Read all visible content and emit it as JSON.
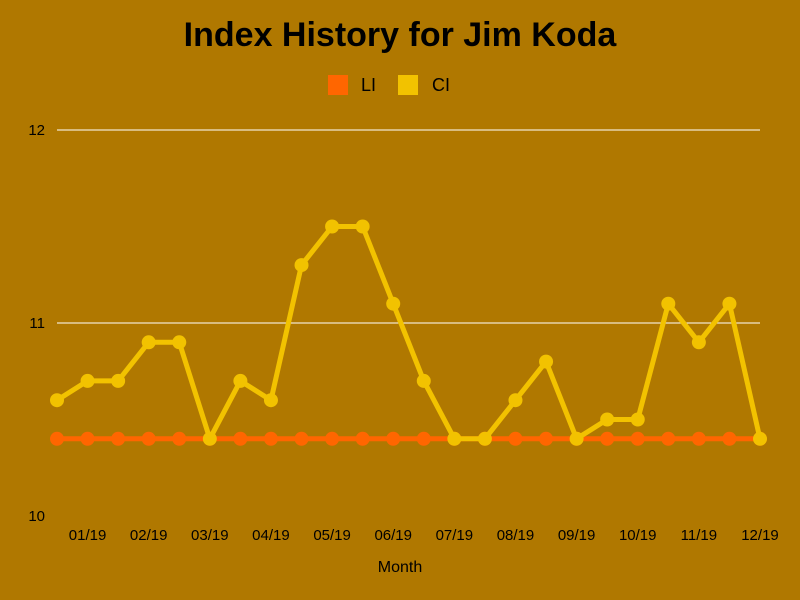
{
  "chart_data": {
    "type": "line",
    "title": "Index History for Jim Koda",
    "xlabel": "Month",
    "ylabel": "",
    "ylim": [
      10,
      12
    ],
    "yticks": [
      "10",
      "11",
      "12"
    ],
    "xtick_labels": [
      "01/19",
      "02/19",
      "03/19",
      "04/19",
      "05/19",
      "06/19",
      "07/19",
      "08/19",
      "09/19",
      "10/19",
      "11/19",
      "12/19"
    ],
    "grid": true,
    "legend_position": "top-center",
    "series": [
      {
        "name": "LI",
        "color": "#ff6600",
        "values": [
          10.4,
          10.4,
          10.4,
          10.4,
          10.4,
          10.4,
          10.4,
          10.4,
          10.4,
          10.4,
          10.4,
          10.4,
          10.4,
          10.4,
          10.4,
          10.4,
          10.4,
          10.4,
          10.4,
          10.4,
          10.4,
          10.4,
          10.4,
          10.4
        ]
      },
      {
        "name": "CI",
        "color": "#f2c200",
        "values": [
          10.6,
          10.7,
          10.7,
          10.9,
          10.9,
          10.4,
          10.7,
          10.6,
          11.3,
          11.5,
          11.5,
          11.1,
          10.7,
          10.4,
          10.4,
          10.6,
          10.8,
          10.4,
          10.5,
          10.5,
          11.1,
          10.9,
          11.1,
          10.4
        ]
      }
    ]
  }
}
